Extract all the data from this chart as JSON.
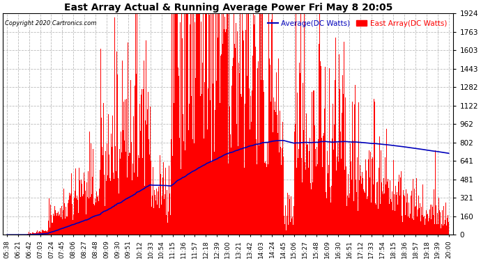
{
  "title": "East Array Actual & Running Average Power Fri May 8 20:05",
  "copyright": "Copyright 2020 Cartronics.com",
  "yticks": [
    0.0,
    160.3,
    320.6,
    480.9,
    641.2,
    801.5,
    961.8,
    1122.1,
    1282.4,
    1442.7,
    1603.0,
    1763.3,
    1923.6
  ],
  "ymax": 1923.6,
  "ymin": 0.0,
  "bar_color": "#FF0000",
  "avg_color": "#0000BB",
  "background_color": "#FFFFFF",
  "grid_color": "#AAAAAA",
  "title_color": "#000000",
  "legend_avg": "Average(DC Watts)",
  "legend_east": "East Array(DC Watts)",
  "x_tick_labels": [
    "05:38",
    "06:21",
    "06:42",
    "07:03",
    "07:24",
    "07:45",
    "08:06",
    "08:27",
    "08:48",
    "09:09",
    "09:30",
    "09:51",
    "10:12",
    "10:33",
    "10:54",
    "11:15",
    "11:36",
    "11:57",
    "12:18",
    "12:39",
    "13:00",
    "13:21",
    "13:42",
    "14:03",
    "14:24",
    "14:45",
    "15:06",
    "15:27",
    "15:48",
    "16:09",
    "16:30",
    "16:51",
    "17:12",
    "17:33",
    "17:54",
    "18:15",
    "18:36",
    "18:57",
    "19:18",
    "19:39",
    "20:00"
  ]
}
